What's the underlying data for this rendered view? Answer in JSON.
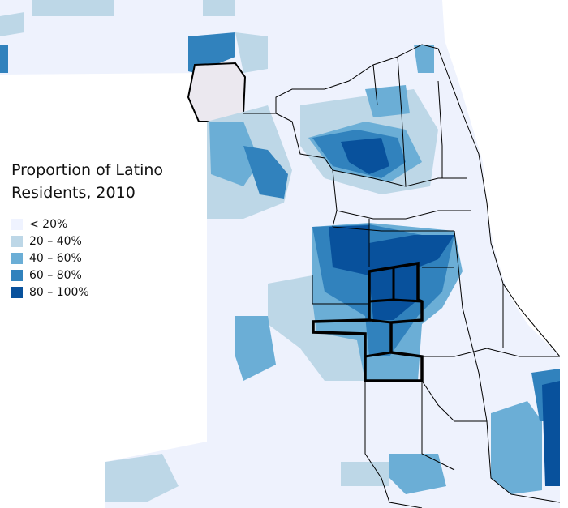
{
  "legend": {
    "title_line1": "Proportion of Latino",
    "title_line2": "Residents, 2010",
    "items": [
      {
        "label": "< 20%",
        "color": "#eff3ff"
      },
      {
        "label": "20 – 40%",
        "color": "#bdd7e7"
      },
      {
        "label": "40 – 60%",
        "color": "#6baed6"
      },
      {
        "label": "60 – 80%",
        "color": "#3182bd"
      },
      {
        "label": "80 – 100%",
        "color": "#08519c"
      }
    ]
  }
}
